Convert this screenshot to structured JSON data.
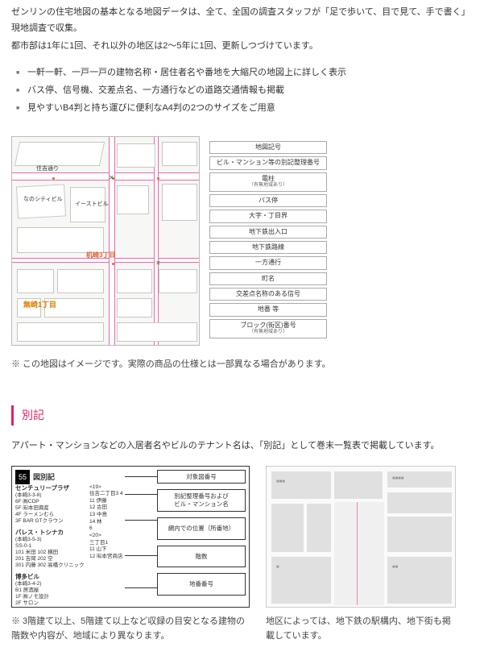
{
  "intro": {
    "line1": "ゼンリンの住宅地図の基本となる地図データは、全て、全国の調査スタッフが「足で歩いて、目で見て、手で書く」現地調査で収集。",
    "line2": "都市部は1年に1回、それ以外の地区は2〜5年に1回、更新しつづけています。"
  },
  "features": [
    "一軒一軒、一戸一戸の建物名称・居住者名や番地を大縮尺の地図上に詳しく表示",
    "バス停、信号機、交差点名、一方通行などの道路交通情報も掲載",
    "見やすいB4判と持ち運びに便利なA4判の2つのサイズをご用意"
  ],
  "map": {
    "street_top_label": "住吉通り",
    "bldg1_label": "なのシティビル",
    "bldg2_label": "イーストビル",
    "district_label_1": "机崎3丁目",
    "district_label_2": "無崎1丁目",
    "legend": [
      {
        "t": "地図記号",
        "s": ""
      },
      {
        "t": "ビル・マンション等の別記整理番号",
        "s": ""
      },
      {
        "t": "電柱",
        "s": "（有無地域あり）"
      },
      {
        "t": "バス停",
        "s": ""
      },
      {
        "t": "大字・丁目界",
        "s": ""
      },
      {
        "t": "地下鉄出入口",
        "s": ""
      },
      {
        "t": "地下鉄路線",
        "s": ""
      },
      {
        "t": "一方通行",
        "s": ""
      },
      {
        "t": "町名",
        "s": ""
      },
      {
        "t": "交差点名称のある信号",
        "s": ""
      },
      {
        "t": "地番 等",
        "s": ""
      },
      {
        "t": "ブロック(街区)番号",
        "s": "（有無地域あり）"
      }
    ],
    "caption": "※ この地図はイメージです。実際の商品の仕様とは一部異なる場合があります。"
  },
  "section_title": "別記",
  "bekki_intro": "アパート・マンションなどの入居者名やビルのテナント名は、「別記」として巻末一覧表で掲載しています。",
  "bekki": {
    "badge": "55",
    "title": "図別記",
    "building1": "センチュリープラザ",
    "b1_addr": "(本崎3-3-8)",
    "b1_rooms": [
      "6F ㈱CDP",
      "5F ㈲本田興産",
      "4F ラーメンむら",
      "3F BAR GTクラウン"
    ],
    "building2": "パレス・トシナカ",
    "b2_addr": "(本崎3-5-3)",
    "b2_lines": [
      "SS-0-1",
      "101 米田 102 横田",
      "201 吉岡 202 空",
      "301 内藤 302 高橋クリニック"
    ],
    "building3": "博多ビル",
    "b3_addr": "(本崎3-4-2)",
    "b3_lines": [
      "B1 居酒屋",
      "1F ㈱ノモ設計",
      "2F サロン"
    ],
    "mid_lines": [
      "<19>",
      "住吉二丁目3 4",
      "11 伊藤",
      "12 古田",
      "13 中島",
      "14 林",
      "6",
      "<20>",
      "三丁目1",
      "11 山下",
      "12 ㈲本宮商店"
    ],
    "rboxes": [
      "対象図番号",
      "別記整理番号および\nビル・マンション名",
      "網内での位置（所番地）",
      "階数",
      "地番番号"
    ],
    "caption": "※ 3階建て以上、5階建て以上など収録の目安となる建物の階数や内容が、地域により異なります。"
  },
  "station_caption": "地区によっては、地下鉄の駅構内、地下街も掲載しています。"
}
